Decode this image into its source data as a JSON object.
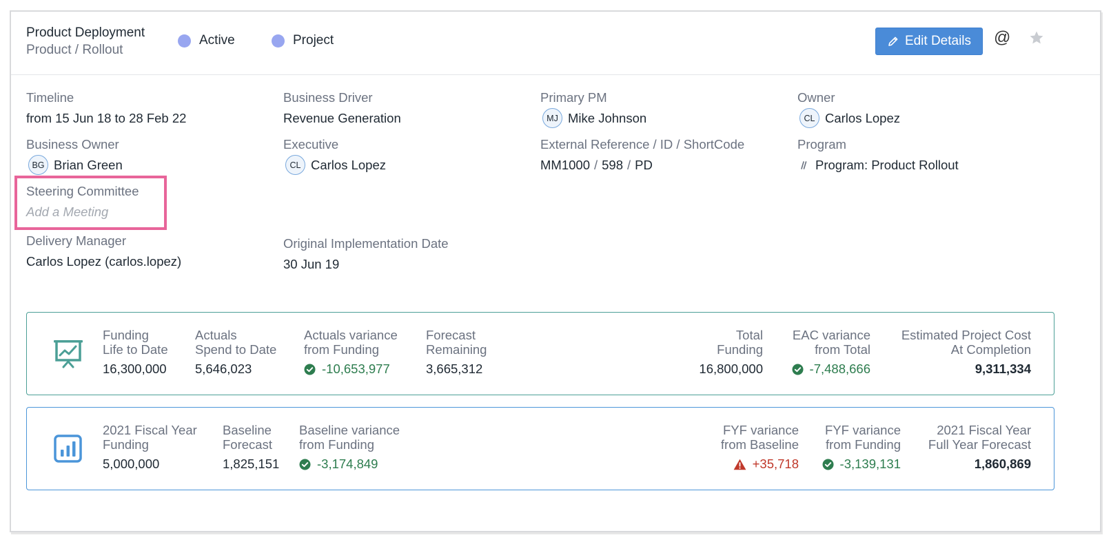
{
  "header": {
    "title": "Product Deployment",
    "subtitle": "Product / Rollout",
    "status": "Active",
    "type": "Project",
    "edit_label": "Edit Details",
    "mention_symbol": "@"
  },
  "fields": {
    "timeline": {
      "label": "Timeline",
      "value": "from 15 Jun 18 to 28 Feb 22"
    },
    "business_driver": {
      "label": "Business Driver",
      "value": "Revenue Generation"
    },
    "primary_pm": {
      "label": "Primary PM",
      "initials": "MJ",
      "value": "Mike Johnson"
    },
    "owner": {
      "label": "Owner",
      "initials": "CL",
      "value": "Carlos Lopez"
    },
    "business_owner": {
      "label": "Business Owner",
      "initials": "BG",
      "value": "Brian Green"
    },
    "executive": {
      "label": "Executive",
      "initials": "CL",
      "value": "Carlos Lopez"
    },
    "external_ref": {
      "label": "External Reference / ID / ShortCode",
      "ref": "MM1000",
      "id": "598",
      "code": "PD",
      "sep": "/"
    },
    "program": {
      "label": "Program",
      "value": "Program: Product Rollout"
    },
    "steering": {
      "label": "Steering Committee",
      "placeholder": "Add a Meeting"
    },
    "delivery_manager": {
      "label": "Delivery Manager",
      "value": "Carlos Lopez (carlos.lopez)"
    },
    "orig_impl": {
      "label": "Original Implementation Date",
      "value": "30 Jun 19"
    }
  },
  "funding_panel": {
    "funding": {
      "l1": "Funding",
      "l2": "Life to Date",
      "value": "16,300,000"
    },
    "actuals": {
      "l1": "Actuals",
      "l2": "Spend to Date",
      "value": "5,646,023"
    },
    "actuals_var": {
      "l1": "Actuals variance",
      "l2": "from Funding",
      "value": "-10,653,977"
    },
    "forecast": {
      "l1": "Forecast",
      "l2": "Remaining",
      "value": "3,665,312"
    },
    "total": {
      "l1": "Total",
      "l2": "Funding",
      "value": "16,800,000"
    },
    "eac_var": {
      "l1": "EAC variance",
      "l2": "from Total",
      "value": "-7,488,666"
    },
    "eac": {
      "l1": "Estimated Project Cost",
      "l2": "At Completion",
      "value": "9,311,334"
    }
  },
  "fiscal_panel": {
    "fy_funding": {
      "l1": "2021 Fiscal Year",
      "l2": "Funding",
      "value": "5,000,000"
    },
    "baseline": {
      "l1": "Baseline",
      "l2": "Forecast",
      "value": "1,825,151"
    },
    "baseline_var": {
      "l1": "Baseline variance",
      "l2": "from Funding",
      "value": "-3,174,849"
    },
    "fyf_base": {
      "l1": "FYF variance",
      "l2": "from Baseline",
      "value": "+35,718"
    },
    "fyf_fund": {
      "l1": "FYF variance",
      "l2": "from Funding",
      "value": "-3,139,131"
    },
    "fy_forecast": {
      "l1": "2021 Fiscal Year",
      "l2": "Full Year Forecast",
      "value": "1,860,869"
    }
  },
  "colors": {
    "accent": "#4a8bd8",
    "good": "#2e7d4f",
    "bad": "#c0392b",
    "teal": "#4b9f96",
    "highlight": "#e8659a"
  }
}
